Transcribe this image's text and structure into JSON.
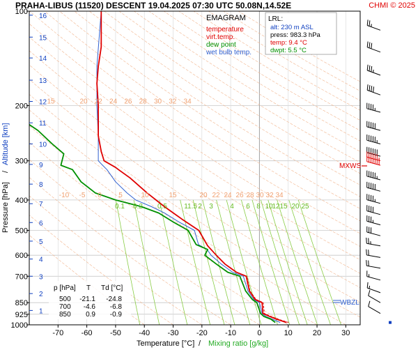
{
  "header": {
    "title": "PRAHA-LIBUS (11520)   DESCENT   19.04.2025 07:30 UTC   50.08N,14.52E",
    "credit": "CHMI © 2025"
  },
  "chart_data": {
    "type": "line",
    "title": "EMAGRAM",
    "xlabel": "Temperature [°C]",
    "xlabel_sep": "/",
    "xlabel2": "Mixing ratio [g/kg]",
    "ylabel": "Pressure [hPa]",
    "ylabel_sep": "/",
    "ylabel2": "Altitude [km]",
    "xlim": [
      -80,
      35
    ],
    "ylim": [
      1000,
      100
    ],
    "x_ticks": [
      -70,
      -60,
      -50,
      -40,
      -30,
      -20,
      -10,
      0,
      10,
      20,
      30
    ],
    "p_ticks": [
      100,
      200,
      300,
      400,
      500,
      600,
      700,
      850,
      925,
      1000
    ],
    "km_ticks": [
      {
        "km": "1",
        "p": 900
      },
      {
        "km": "2",
        "p": 795
      },
      {
        "km": "3",
        "p": 700
      },
      {
        "km": "4",
        "p": 617
      },
      {
        "km": "5",
        "p": 541
      },
      {
        "km": "6",
        "p": 472
      },
      {
        "km": "7",
        "p": 411
      },
      {
        "km": "8",
        "p": 356
      },
      {
        "km": "9",
        "p": 308
      },
      {
        "km": "10",
        "p": 265
      },
      {
        "km": "11",
        "p": 227
      },
      {
        "km": "12",
        "p": 194
      },
      {
        "km": "13",
        "p": 166
      },
      {
        "km": "14",
        "p": 141
      },
      {
        "km": "15",
        "p": 121
      },
      {
        "km": "16",
        "p": 103
      }
    ],
    "legend": [
      {
        "label": "temperature",
        "color": "#e00000"
      },
      {
        "label": "virt.temp.",
        "color": "#e00000"
      },
      {
        "label": "dew point",
        "color": "#009000"
      },
      {
        "label": "wet bulb temp.",
        "color": "#3060d0"
      }
    ],
    "dry_adiabat_labels": {
      "row200": [
        "15",
        "20",
        "22",
        "24",
        "26",
        "28",
        "30",
        "32",
        "34"
      ],
      "row400": [
        "-10",
        "-5",
        "0",
        "5",
        "10",
        "15",
        "20",
        "22",
        "24",
        "26",
        "28",
        "30",
        "32",
        "34"
      ]
    },
    "mixing_ratio_labels": [
      "0.1",
      "0.2",
      "0.5",
      "1",
      "1.5",
      "2",
      "3",
      "4",
      "6",
      "8",
      "10",
      "12",
      "15",
      "20",
      "25"
    ],
    "series": [
      {
        "name": "temperature",
        "color": "#e00000",
        "points": [
          [
            9.4,
            983
          ],
          [
            6,
            960
          ],
          [
            3.5,
            940
          ],
          [
            1.2,
            920
          ],
          [
            0.9,
            850
          ],
          [
            -1.5,
            830
          ],
          [
            -3.5,
            780
          ],
          [
            -4.6,
            700
          ],
          [
            -8,
            680
          ],
          [
            -12,
            640
          ],
          [
            -15,
            600
          ],
          [
            -18,
            560
          ],
          [
            -21.1,
            500
          ],
          [
            -27,
            460
          ],
          [
            -33,
            420
          ],
          [
            -39,
            380
          ],
          [
            -45,
            340
          ],
          [
            -49,
            320
          ],
          [
            -50,
            315
          ],
          [
            -54,
            300
          ],
          [
            -55,
            280
          ],
          [
            -56,
            250
          ],
          [
            -56,
            220
          ],
          [
            -56,
            200
          ],
          [
            -56.5,
            170
          ],
          [
            -56,
            150
          ],
          [
            -55,
            130
          ],
          [
            -55,
            115
          ],
          [
            -55,
            100
          ]
        ]
      },
      {
        "name": "virt.temp.",
        "color": "#e00000",
        "points": [
          [
            10.1,
            983
          ],
          [
            6.6,
            960
          ],
          [
            4.0,
            940
          ],
          [
            1.7,
            920
          ],
          [
            1.3,
            850
          ],
          [
            -1.2,
            830
          ],
          [
            -3.3,
            780
          ],
          [
            -4.4,
            700
          ],
          [
            -7.9,
            680
          ],
          [
            -11.9,
            640
          ],
          [
            -14.9,
            600
          ],
          [
            -17.9,
            560
          ],
          [
            -21,
            500
          ],
          [
            -27,
            460
          ],
          [
            -33,
            420
          ],
          [
            -39,
            380
          ],
          [
            -45,
            340
          ]
        ]
      },
      {
        "name": "dew point",
        "color": "#009000",
        "points": [
          [
            5.5,
            983
          ],
          [
            4,
            960
          ],
          [
            1.5,
            940
          ],
          [
            0.4,
            920
          ],
          [
            -0.9,
            850
          ],
          [
            -2.5,
            830
          ],
          [
            -4.8,
            780
          ],
          [
            -6.8,
            700
          ],
          [
            -11,
            680
          ],
          [
            -15,
            640
          ],
          [
            -19,
            600
          ],
          [
            -18,
            575
          ],
          [
            -22,
            555
          ],
          [
            -24.8,
            500
          ],
          [
            -30,
            470
          ],
          [
            -35,
            440
          ],
          [
            -41,
            420
          ],
          [
            -50,
            400
          ],
          [
            -57,
            380
          ],
          [
            -62,
            350
          ],
          [
            -65,
            320
          ],
          [
            -69,
            310
          ],
          [
            -68,
            285
          ],
          [
            -72,
            265
          ],
          [
            -77,
            240
          ],
          [
            -80,
            230
          ]
        ]
      },
      {
        "name": "wet bulb temp.",
        "color": "#3060d0",
        "points": [
          [
            7.2,
            983
          ],
          [
            4.5,
            960
          ],
          [
            2.2,
            940
          ],
          [
            0.9,
            920
          ],
          [
            0.0,
            850
          ],
          [
            -2,
            830
          ],
          [
            -4,
            780
          ],
          [
            -5.6,
            700
          ],
          [
            -9.3,
            680
          ],
          [
            -13.3,
            640
          ],
          [
            -16.8,
            600
          ],
          [
            -18.2,
            575
          ],
          [
            -21.2,
            555
          ],
          [
            -22.6,
            500
          ],
          [
            -28,
            470
          ],
          [
            -33,
            440
          ],
          [
            -37.5,
            420
          ],
          [
            -43,
            400
          ],
          [
            -46,
            380
          ],
          [
            -50,
            350
          ],
          [
            -53,
            320
          ],
          [
            -54.5,
            310
          ],
          [
            -56,
            300
          ],
          [
            -56,
            250
          ],
          [
            -56.5,
            200
          ],
          [
            -56.5,
            150
          ],
          [
            -55,
            100
          ]
        ]
      }
    ],
    "wind_barbs": [
      {
        "p": 115,
        "dir": 290,
        "kt": 25
      },
      {
        "p": 135,
        "dir": 290,
        "kt": 30
      },
      {
        "p": 160,
        "dir": 290,
        "kt": 35
      },
      {
        "p": 185,
        "dir": 290,
        "kt": 40
      },
      {
        "p": 210,
        "dir": 285,
        "kt": 45
      },
      {
        "p": 240,
        "dir": 285,
        "kt": 50
      },
      {
        "p": 265,
        "dir": 285,
        "kt": 55
      },
      {
        "p": 290,
        "dir": 285,
        "kt": 60
      },
      {
        "p": 300,
        "dir": 285,
        "kt": 65
      },
      {
        "p": 310,
        "dir": 285,
        "kt": 70
      },
      {
        "p": 345,
        "dir": 285,
        "kt": 55
      },
      {
        "p": 375,
        "dir": 285,
        "kt": 50
      },
      {
        "p": 410,
        "dir": 285,
        "kt": 45
      },
      {
        "p": 445,
        "dir": 285,
        "kt": 40
      },
      {
        "p": 480,
        "dir": 285,
        "kt": 35
      },
      {
        "p": 520,
        "dir": 285,
        "kt": 30
      },
      {
        "p": 560,
        "dir": 280,
        "kt": 25
      },
      {
        "p": 610,
        "dir": 280,
        "kt": 20
      },
      {
        "p": 660,
        "dir": 280,
        "kt": 20
      },
      {
        "p": 720,
        "dir": 285,
        "kt": 15
      },
      {
        "p": 790,
        "dir": 290,
        "kt": 15
      },
      {
        "p": 850,
        "dir": 300,
        "kt": 10
      },
      {
        "p": 920,
        "dir": 300,
        "kt": 10
      }
    ]
  },
  "lrl_box": {
    "title": "LRL:",
    "alt": "alt: 230 m ASL",
    "press": "press: 983.3 hPa",
    "temp": "temp: 9.4 °C",
    "dwpt": "dwpt: 5.5 °C"
  },
  "markers": {
    "mxws": "MXWS",
    "wbzl": "WBZL"
  },
  "table": {
    "headers": [
      "p [hPa]",
      "T",
      "Td [°C]"
    ],
    "rows": [
      [
        "500",
        "-21.1",
        "-24.8"
      ],
      [
        "700",
        "-4.6",
        "-6.8"
      ],
      [
        "850",
        "0.9",
        "-0.9"
      ]
    ]
  }
}
